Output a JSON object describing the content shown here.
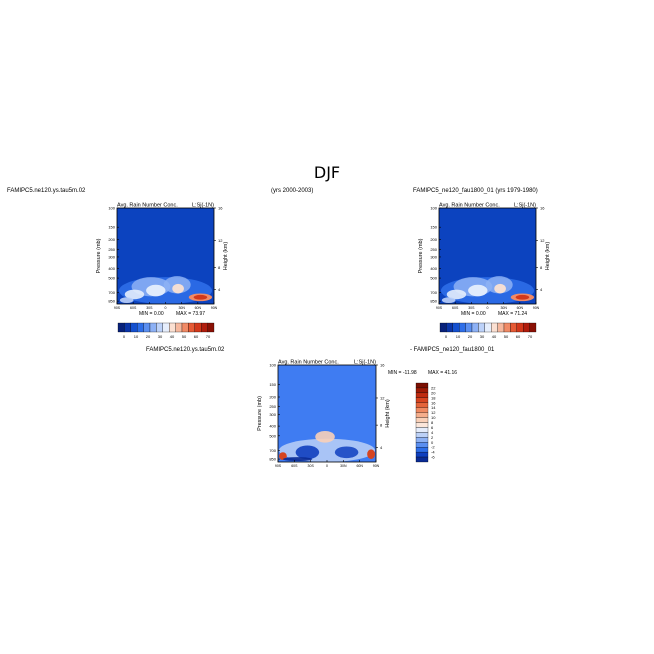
{
  "figure": {
    "title": "DJF",
    "top_left_label": "FAMIPC5.ne120.ys.tau5m.02",
    "top_center_label": "(yrs 2000-2003)",
    "top_right_label": "FAMIPC5_ne120_fau1800_01 (yrs 1979-1980)",
    "diff_left_label": "FAMIPC5.ne120.ys.tau5m.02",
    "diff_right_label": "- FAMIPC5_ne120_fau1800_01"
  },
  "chart_data": [
    {
      "type": "heatmap",
      "panel": "top-left",
      "title": "Avg. Rain Number Conc.",
      "region_label": "L:Sj(-1N)",
      "ylabel": "Pressure (mb)",
      "y2label": "Height (km)",
      "x_ticks": [
        "90S",
        "60S",
        "30S",
        "0",
        "30N",
        "60N",
        "90N"
      ],
      "y_ticks": [
        "100",
        "150",
        "200",
        "250",
        "300",
        "400",
        "500",
        "700",
        "850"
      ],
      "y2_ticks": [
        "16",
        "12",
        "8",
        "4"
      ],
      "min_label": "MIN =",
      "min_value": "0.00",
      "max_label": "MAX =",
      "max_value": "73.97",
      "colorbar_ticks": [
        "0",
        "10",
        "20",
        "30",
        "40",
        "50",
        "60",
        "70"
      ]
    },
    {
      "type": "heatmap",
      "panel": "top-right",
      "title": "Avg. Rain Number Conc.",
      "region_label": "L:Sj(-1N)",
      "ylabel": "Pressure (mb)",
      "y2label": "Height (km)",
      "x_ticks": [
        "90S",
        "60S",
        "30S",
        "0",
        "30N",
        "60N",
        "90N"
      ],
      "y_ticks": [
        "100",
        "150",
        "200",
        "250",
        "300",
        "400",
        "500",
        "700",
        "850"
      ],
      "y2_ticks": [
        "16",
        "12",
        "8",
        "4"
      ],
      "min_label": "MIN =",
      "min_value": "0.00",
      "max_label": "MAX =",
      "max_value": "71.24",
      "colorbar_ticks": [
        "0",
        "10",
        "20",
        "30",
        "40",
        "50",
        "60",
        "70"
      ]
    },
    {
      "type": "heatmap",
      "panel": "difference",
      "title": "Avg. Rain Number Conc.",
      "region_label": "L:Sj(-1N)",
      "ylabel": "Pressure (mb)",
      "y2label": "Height (km)",
      "x_ticks": [
        "90S",
        "60S",
        "30S",
        "0",
        "30N",
        "60N",
        "90N"
      ],
      "y_ticks": [
        "100",
        "150",
        "200",
        "250",
        "300",
        "400",
        "500",
        "700",
        "850"
      ],
      "y2_ticks": [
        "16",
        "12",
        "8",
        "4"
      ],
      "min_label": "MIN =",
      "min_value": "-11.98",
      "max_label": "MAX =",
      "max_value": "41.16",
      "colorbar_ticks": [
        "22",
        "20",
        "18",
        "16",
        "14",
        "12",
        "10",
        "8",
        "6",
        "4",
        "2",
        "0",
        "-2",
        "-4",
        "-6"
      ]
    }
  ],
  "colors": {
    "field_background": "#0c43bf",
    "diff_background": "#3f7cf2",
    "full_palette": [
      "#08217a",
      "#0b35a8",
      "#1450cf",
      "#2e6ee8",
      "#5b8ff0",
      "#8db1f5",
      "#bdd2f9",
      "#e6eefc",
      "#fbe0d2",
      "#f6b89e",
      "#f08a66",
      "#e65a35",
      "#d2381b",
      "#b01d0d",
      "#8a1005"
    ],
    "diff_palette": [
      "#7b0f02",
      "#9e1a06",
      "#bf2b10",
      "#d64420",
      "#e4643a",
      "#ef8a62",
      "#f5ae8c",
      "#f9d0b8",
      "#fbe6da",
      "#e4ecfb",
      "#bcd1f7",
      "#8db1f4",
      "#5b8ff0",
      "#2e6ee8",
      "#0f3fbf",
      "#0a2b95"
    ]
  }
}
